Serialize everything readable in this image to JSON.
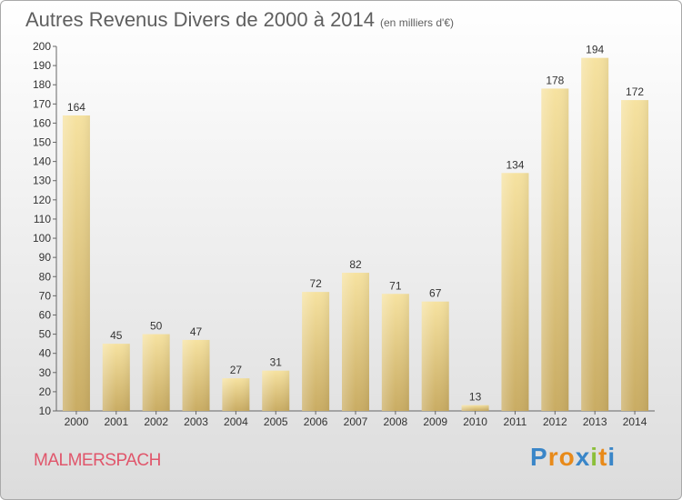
{
  "header": {
    "title": "Autres Revenus Divers de 2000 à 2014",
    "unit": "(en milliers d'€)"
  },
  "footer": {
    "city": "MALMERSPACH",
    "logo": {
      "text": "Proxiti",
      "letters": [
        "P",
        "r",
        "o",
        "x",
        "i",
        "t",
        "i"
      ],
      "letter_colors": [
        "#3a86c8",
        "#e88a1a",
        "#e88a1a",
        "#3a86c8",
        "#8bbf3a",
        "#e88a1a",
        "#3a86c8"
      ]
    }
  },
  "colors": {
    "bar_fill_light": "#f6e2a0",
    "bar_fill_dark": "#c9ac63",
    "axis": "#666666",
    "city": "#e0566b"
  },
  "chart_data": {
    "type": "bar",
    "title": "Autres Revenus Divers de 2000 à 2014",
    "subtitle": "(en milliers d'€)",
    "categories": [
      "2000",
      "2001",
      "2002",
      "2003",
      "2004",
      "2005",
      "2006",
      "2007",
      "2008",
      "2009",
      "2010",
      "2011",
      "2012",
      "2013",
      "2014"
    ],
    "values": [
      164,
      45,
      50,
      47,
      27,
      31,
      72,
      82,
      71,
      67,
      13,
      134,
      178,
      194,
      172
    ],
    "ylim": [
      10,
      200
    ],
    "yticks": [
      10,
      20,
      30,
      40,
      50,
      60,
      70,
      80,
      90,
      100,
      110,
      120,
      130,
      140,
      150,
      160,
      170,
      180,
      190,
      200
    ],
    "grid": false,
    "legend": "none"
  }
}
